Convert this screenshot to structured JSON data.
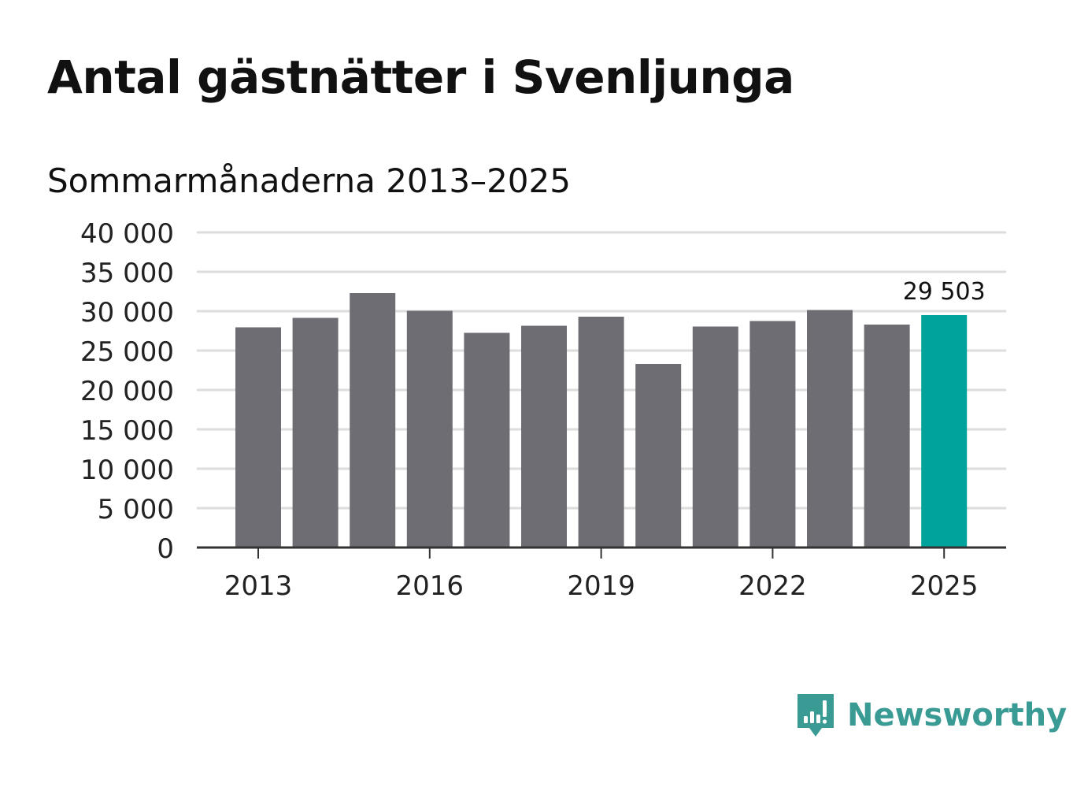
{
  "title": "Antal gästnätter i Svenljunga",
  "subtitle": "Sommarmånaderna 2013–2025",
  "brand": {
    "name": "Newsworthy",
    "icon": "newsworthy-logo-icon",
    "color": "#3a9b94"
  },
  "colors": {
    "bar": "#6e6d74",
    "highlight": "#00a39b",
    "grid": "#dddddd",
    "axis": "#333333"
  },
  "chart_data": {
    "type": "bar",
    "categories": [
      "2013",
      "2014",
      "2015",
      "2016",
      "2017",
      "2018",
      "2019",
      "2020",
      "2021",
      "2022",
      "2023",
      "2024",
      "2025"
    ],
    "values": [
      27950,
      29150,
      32300,
      30050,
      27250,
      28150,
      29300,
      23300,
      28050,
      28750,
      30150,
      28300,
      29503
    ],
    "x_tick_labels": [
      "2013",
      "2016",
      "2019",
      "2022",
      "2025"
    ],
    "y_ticks": [
      0,
      5000,
      10000,
      15000,
      20000,
      25000,
      30000,
      35000,
      40000
    ],
    "y_tick_labels": [
      "0",
      "5 000",
      "10 000",
      "15 000",
      "20 000",
      "25 000",
      "30 000",
      "35 000",
      "40 000"
    ],
    "ylim": [
      0,
      40000
    ],
    "highlight_category": "2025",
    "annotation": {
      "category": "2025",
      "text": "29 503"
    },
    "grid": true,
    "xlabel": "",
    "ylabel": ""
  }
}
